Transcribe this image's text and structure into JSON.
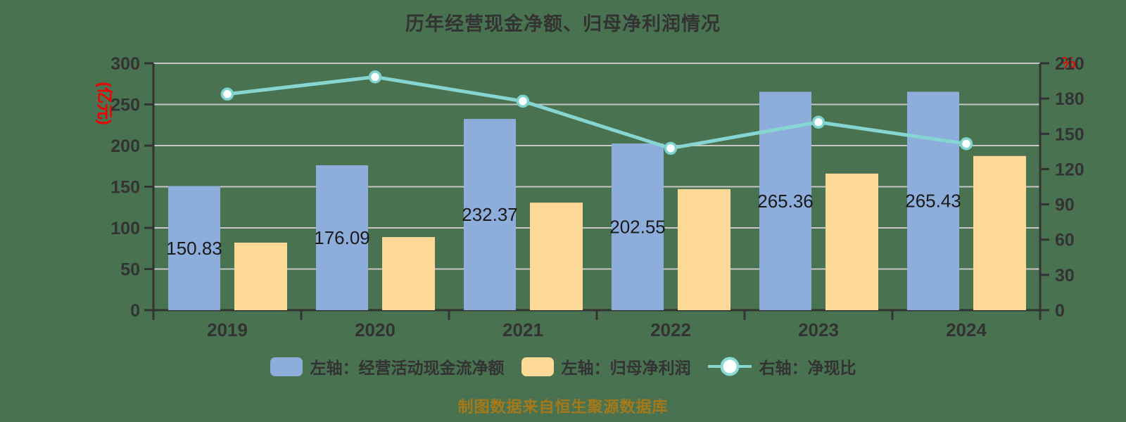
{
  "title": "历年经营现金净额、归母净利润情况",
  "source_note": "制图数据来自恒生聚源数据库",
  "colors": {
    "background": "#497251",
    "bar_blue": "#8DADDB",
    "bar_yellow": "#FDD998",
    "line_teal": "#87D5D1",
    "marker_fill": "#FFFFFF",
    "marker_ring": "#7FD3CF",
    "axis": "#333333",
    "grid": "#C8C7C3",
    "tick_text": "#333333",
    "bar_label_text": "#1A1A1A",
    "red_accent": "#F20000",
    "source_text": "#A5791A"
  },
  "left_axis": {
    "name": "(亿元)",
    "min": 0,
    "max": 300,
    "step": 50,
    "ticks": [
      "300",
      "250",
      "200",
      "150",
      "100",
      "50",
      "0"
    ]
  },
  "right_axis": {
    "name": "%",
    "min": 0,
    "max": 210,
    "step": 30,
    "ticks": [
      "210",
      "180",
      "150",
      "120",
      "90",
      "60",
      "30",
      "0"
    ]
  },
  "legend": {
    "items": [
      {
        "label": "左轴：经营活动现金流净额",
        "marker": "blue-rounded-rect"
      },
      {
        "label": "左轴：归母净利润",
        "marker": "yellow-rounded-rect"
      },
      {
        "label": "右轴：净现比",
        "marker": "teal-line-with-circle"
      }
    ]
  },
  "chart_data": {
    "type": "bar",
    "subtype": "grouped-bars-with-line",
    "title": "历年经营现金净额、归母净利润情况",
    "categories": [
      "2019",
      "2020",
      "2021",
      "2022",
      "2023",
      "2024"
    ],
    "series": [
      {
        "name": "左轴：经营活动现金流净额",
        "type": "bar",
        "axis": "left",
        "color": "#8DADDB",
        "values": [
          150.83,
          176.09,
          232.37,
          202.55,
          265.36,
          265.43
        ],
        "labels": [
          "150.83",
          "176.09",
          "232.37",
          "202.55",
          "265.36",
          "265.43"
        ]
      },
      {
        "name": "左轴：归母净利润",
        "type": "bar",
        "axis": "left",
        "color": "#FDD998",
        "values": [
          82.1,
          88.8,
          130.7,
          147.1,
          166.0,
          187.4
        ],
        "labels": []
      },
      {
        "name": "右轴：净现比",
        "type": "line",
        "axis": "right",
        "color": "#87D5D1",
        "values": [
          183.8,
          198.4,
          177.8,
          137.7,
          159.9,
          141.6
        ],
        "labels": []
      }
    ],
    "xlabel": "",
    "ylabel_left": "(亿元)",
    "ylabel_right": "%",
    "ylim_left": [
      0,
      300
    ],
    "ylim_right": [
      0,
      210
    ],
    "grid": true,
    "legend_position": "bottom"
  }
}
